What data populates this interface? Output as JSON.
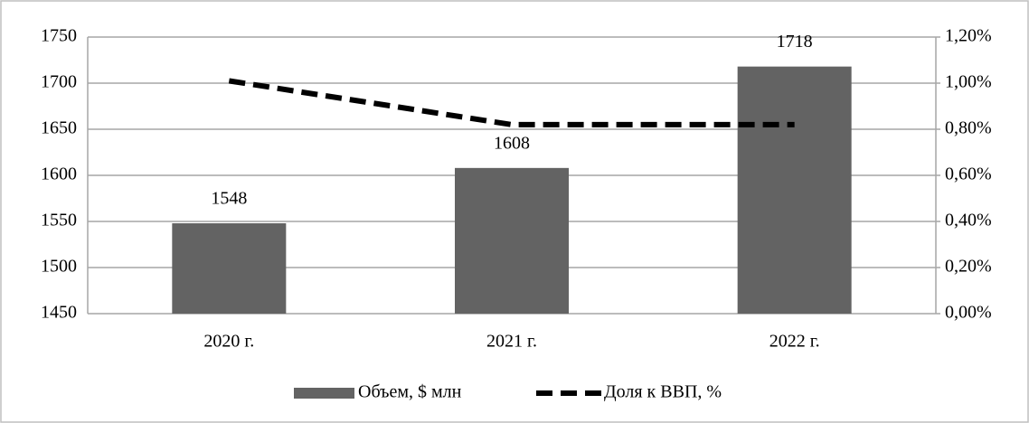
{
  "chart_data": {
    "type": "bar_line",
    "categories": [
      "2020 г.",
      "2021 г.",
      "2022 г."
    ],
    "series": [
      {
        "name": "Объем, $ млн",
        "color": "#636363",
        "values": [
          1548,
          1608,
          1718
        ],
        "type": "bar"
      },
      {
        "name": "Доля к ВВП, %",
        "color": "#000000",
        "values": [
          1.01,
          0.82,
          0.82
        ],
        "type": "line",
        "axis": "y2"
      }
    ],
    "ylim": [
      1450,
      1750
    ],
    "yticks": [
      1450,
      1500,
      1550,
      1600,
      1650,
      1700,
      1750
    ],
    "y2lim": [
      0,
      1.2
    ],
    "y2ticks": [
      {
        "value": 0,
        "label": "0,00%"
      },
      {
        "value": 0.2,
        "label": "0,20%"
      },
      {
        "value": 0.4,
        "label": "0,40%"
      },
      {
        "value": 0.6,
        "label": "0,60%"
      },
      {
        "value": 0.8,
        "label": "0,80%"
      },
      {
        "value": 1.0,
        "label": "1,00%"
      },
      {
        "value": 1.2,
        "label": "1,20%"
      }
    ],
    "grid": true,
    "legend": "bottom"
  }
}
